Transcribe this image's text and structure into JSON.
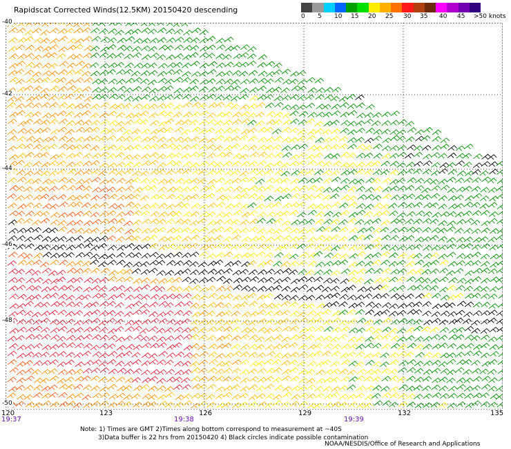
{
  "header": {
    "title": "Rapidscat Corrected Winds(12.5KM) 20150420 descending"
  },
  "legend": {
    "colors": [
      "#444444",
      "#9a9a9a",
      "#00d0ff",
      "#0066ff",
      "#00a000",
      "#00e000",
      "#ffee00",
      "#ffb000",
      "#ff7000",
      "#ff1a1a",
      "#b04010",
      "#6b2a0a",
      "#ff00ff",
      "#b000d0",
      "#7000b0",
      "#300080"
    ],
    "labels": [
      "0",
      "5",
      "10",
      "15",
      "20",
      "25",
      "30",
      "35",
      "40",
      "45",
      ">50 knots"
    ]
  },
  "axes": {
    "lon_ticks": [
      "120",
      "123",
      "126",
      "129",
      "132",
      "135"
    ],
    "lat_ticks": [
      "-40",
      "-42",
      "-44",
      "-46",
      "-48",
      "-50"
    ],
    "time_labels": [
      "19:37",
      "19:38",
      "19:39"
    ]
  },
  "footer": {
    "note_line1": "Note: 1) Times are GMT 2)Times along bottom correspond to measurement at ~40S",
    "note_line2": "3)Data buffer is 22 hrs from 20150420 4) Black circles indicate possible contamination",
    "credit": "NOAA/NESDIS/Office of Research and Applications"
  }
}
